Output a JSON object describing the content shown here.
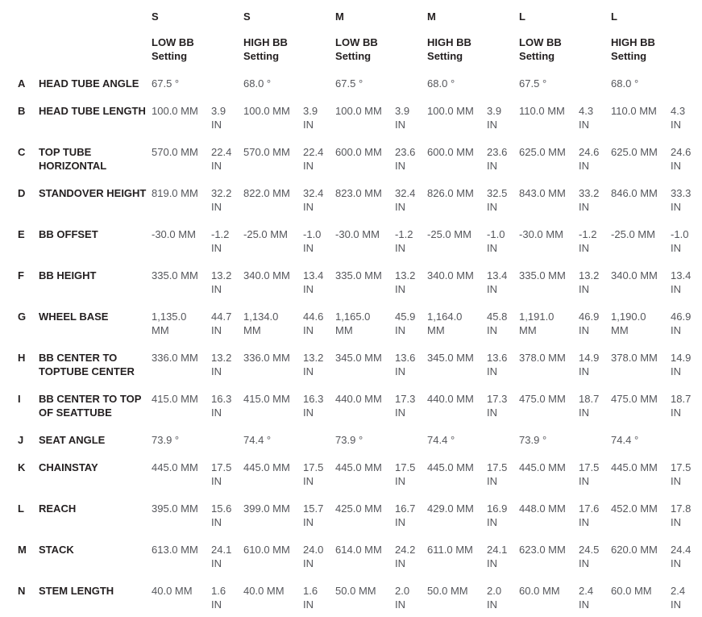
{
  "page": {
    "background_color": "#ffffff",
    "name_color": "#231f20",
    "value_color": "#55565b"
  },
  "table": {
    "columns": [
      {
        "size": "S",
        "setting": "LOW BB\nSetting"
      },
      {
        "size": "S",
        "setting": "HIGH BB\nSetting"
      },
      {
        "size": "M",
        "setting": "LOW BB\nSetting"
      },
      {
        "size": "M",
        "setting": "HIGH BB\nSetting"
      },
      {
        "size": "L",
        "setting": "LOW BB\nSetting"
      },
      {
        "size": "L",
        "setting": "HIGH BB\nSetting"
      }
    ],
    "rows": [
      {
        "letter": "A",
        "name": "HEAD TUBE ANGLE",
        "cells": [
          {
            "mm": "67.5 °",
            "in": ""
          },
          {
            "mm": "68.0 °",
            "in": ""
          },
          {
            "mm": "67.5 °",
            "in": ""
          },
          {
            "mm": "68.0 °",
            "in": ""
          },
          {
            "mm": "67.5 °",
            "in": ""
          },
          {
            "mm": "68.0 °",
            "in": ""
          }
        ]
      },
      {
        "letter": "B",
        "name": "HEAD TUBE LENGTH",
        "cells": [
          {
            "mm": "100.0 MM",
            "in": "3.9 IN"
          },
          {
            "mm": "100.0 MM",
            "in": "3.9 IN"
          },
          {
            "mm": "100.0 MM",
            "in": "3.9 IN"
          },
          {
            "mm": "100.0 MM",
            "in": "3.9 IN"
          },
          {
            "mm": "110.0 MM",
            "in": "4.3 IN"
          },
          {
            "mm": "110.0 MM",
            "in": "4.3 IN"
          }
        ]
      },
      {
        "letter": "C",
        "name": "TOP TUBE HORIZONTAL",
        "cells": [
          {
            "mm": "570.0 MM",
            "in": "22.4 IN"
          },
          {
            "mm": "570.0 MM",
            "in": "22.4 IN"
          },
          {
            "mm": "600.0 MM",
            "in": "23.6 IN"
          },
          {
            "mm": "600.0 MM",
            "in": "23.6 IN"
          },
          {
            "mm": "625.0 MM",
            "in": "24.6 IN"
          },
          {
            "mm": "625.0 MM",
            "in": "24.6 IN"
          }
        ]
      },
      {
        "letter": "D",
        "name": "STANDOVER HEIGHT",
        "cells": [
          {
            "mm": "819.0 MM",
            "in": "32.2 IN"
          },
          {
            "mm": "822.0 MM",
            "in": "32.4 IN"
          },
          {
            "mm": "823.0 MM",
            "in": "32.4 IN"
          },
          {
            "mm": "826.0 MM",
            "in": "32.5 IN"
          },
          {
            "mm": "843.0 MM",
            "in": "33.2 IN"
          },
          {
            "mm": "846.0 MM",
            "in": "33.3 IN"
          }
        ]
      },
      {
        "letter": "E",
        "name": "BB OFFSET",
        "cells": [
          {
            "mm": "-30.0 MM",
            "in": "-1.2 IN"
          },
          {
            "mm": "-25.0 MM",
            "in": "-1.0 IN"
          },
          {
            "mm": "-30.0 MM",
            "in": "-1.2 IN"
          },
          {
            "mm": "-25.0 MM",
            "in": "-1.0 IN"
          },
          {
            "mm": "-30.0 MM",
            "in": "-1.2 IN"
          },
          {
            "mm": "-25.0 MM",
            "in": "-1.0 IN"
          }
        ]
      },
      {
        "letter": "F",
        "name": "BB HEIGHT",
        "cells": [
          {
            "mm": "335.0 MM",
            "in": "13.2 IN"
          },
          {
            "mm": "340.0 MM",
            "in": "13.4 IN"
          },
          {
            "mm": "335.0 MM",
            "in": "13.2 IN"
          },
          {
            "mm": "340.0 MM",
            "in": "13.4 IN"
          },
          {
            "mm": "335.0 MM",
            "in": "13.2 IN"
          },
          {
            "mm": "340.0 MM",
            "in": "13.4 IN"
          }
        ]
      },
      {
        "letter": "G",
        "name": "WHEEL BASE",
        "cells": [
          {
            "mm": "1,135.0 MM",
            "in": "44.7 IN"
          },
          {
            "mm": "1,134.0 MM",
            "in": "44.6 IN"
          },
          {
            "mm": "1,165.0 MM",
            "in": "45.9 IN"
          },
          {
            "mm": "1,164.0 MM",
            "in": "45.8 IN"
          },
          {
            "mm": "1,191.0 MM",
            "in": "46.9 IN"
          },
          {
            "mm": "1,190.0 MM",
            "in": "46.9 IN"
          }
        ]
      },
      {
        "letter": "H",
        "name": "BB CENTER TO TOPTUBE CENTER",
        "cells": [
          {
            "mm": "336.0 MM",
            "in": "13.2 IN"
          },
          {
            "mm": "336.0 MM",
            "in": "13.2 IN"
          },
          {
            "mm": "345.0 MM",
            "in": "13.6 IN"
          },
          {
            "mm": "345.0 MM",
            "in": "13.6 IN"
          },
          {
            "mm": "378.0 MM",
            "in": "14.9 IN"
          },
          {
            "mm": "378.0 MM",
            "in": "14.9 IN"
          }
        ]
      },
      {
        "letter": "I",
        "name": "BB CENTER TO TOP OF SEATTUBE",
        "cells": [
          {
            "mm": "415.0 MM",
            "in": "16.3 IN"
          },
          {
            "mm": "415.0 MM",
            "in": "16.3 IN"
          },
          {
            "mm": "440.0 MM",
            "in": "17.3 IN"
          },
          {
            "mm": "440.0 MM",
            "in": "17.3 IN"
          },
          {
            "mm": "475.0 MM",
            "in": "18.7 IN"
          },
          {
            "mm": "475.0 MM",
            "in": "18.7 IN"
          }
        ]
      },
      {
        "letter": "J",
        "name": "SEAT ANGLE",
        "cells": [
          {
            "mm": "73.9 °",
            "in": ""
          },
          {
            "mm": "74.4 °",
            "in": ""
          },
          {
            "mm": "73.9 °",
            "in": ""
          },
          {
            "mm": "74.4 °",
            "in": ""
          },
          {
            "mm": "73.9 °",
            "in": ""
          },
          {
            "mm": "74.4 °",
            "in": ""
          }
        ]
      },
      {
        "letter": "K",
        "name": "CHAINSTAY",
        "cells": [
          {
            "mm": "445.0 MM",
            "in": "17.5 IN"
          },
          {
            "mm": "445.0 MM",
            "in": "17.5 IN"
          },
          {
            "mm": "445.0 MM",
            "in": "17.5 IN"
          },
          {
            "mm": "445.0 MM",
            "in": "17.5 IN"
          },
          {
            "mm": "445.0 MM",
            "in": "17.5 IN"
          },
          {
            "mm": "445.0 MM",
            "in": "17.5 IN"
          }
        ]
      },
      {
        "letter": "L",
        "name": "REACH",
        "cells": [
          {
            "mm": "395.0 MM",
            "in": "15.6 IN"
          },
          {
            "mm": "399.0 MM",
            "in": "15.7 IN"
          },
          {
            "mm": "425.0 MM",
            "in": "16.7 IN"
          },
          {
            "mm": "429.0 MM",
            "in": "16.9 IN"
          },
          {
            "mm": "448.0 MM",
            "in": "17.6 IN"
          },
          {
            "mm": "452.0 MM",
            "in": "17.8 IN"
          }
        ]
      },
      {
        "letter": "M",
        "name": "STACK",
        "cells": [
          {
            "mm": "613.0 MM",
            "in": "24.1 IN"
          },
          {
            "mm": "610.0 MM",
            "in": "24.0 IN"
          },
          {
            "mm": "614.0 MM",
            "in": "24.2 IN"
          },
          {
            "mm": "611.0 MM",
            "in": "24.1 IN"
          },
          {
            "mm": "623.0 MM",
            "in": "24.5 IN"
          },
          {
            "mm": "620.0 MM",
            "in": "24.4 IN"
          }
        ]
      },
      {
        "letter": "N",
        "name": "STEM LENGTH",
        "cells": [
          {
            "mm": "40.0 MM",
            "in": "1.6 IN"
          },
          {
            "mm": "40.0 MM",
            "in": "1.6 IN"
          },
          {
            "mm": "50.0 MM",
            "in": "2.0 IN"
          },
          {
            "mm": "50.0 MM",
            "in": "2.0 IN"
          },
          {
            "mm": "60.0 MM",
            "in": "2.4 IN"
          },
          {
            "mm": "60.0 MM",
            "in": "2.4 IN"
          }
        ]
      }
    ]
  }
}
